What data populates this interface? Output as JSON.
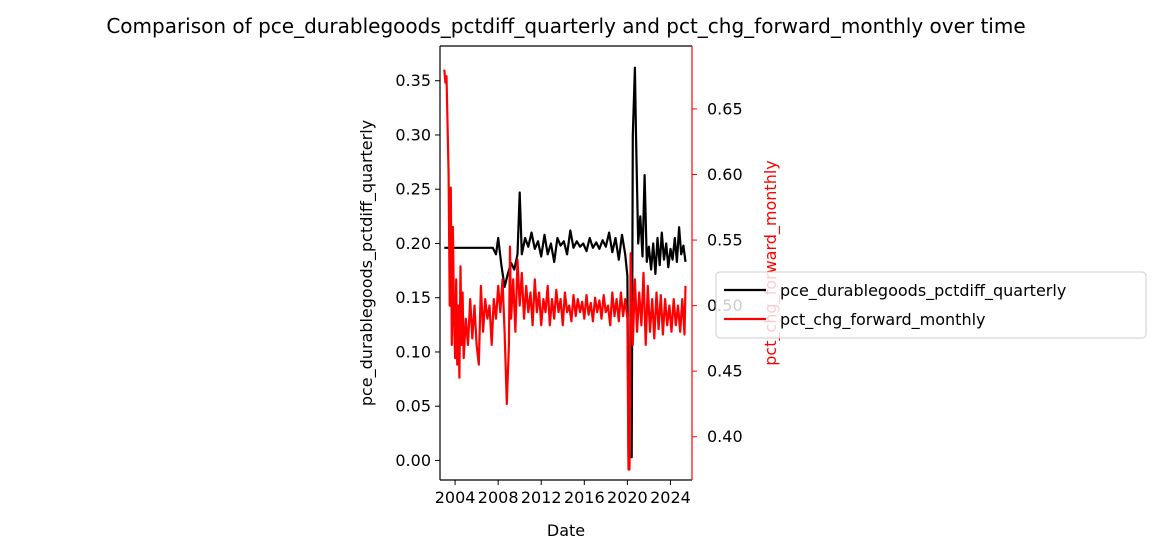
{
  "chart_data": {
    "type": "line",
    "title": "Comparison of pce_durablegoods_pctdiff_quarterly and pct_chg_forward_monthly over time",
    "xlabel": "Date",
    "ylabel_left": "pce_durablegoods_pctdiff_quarterly",
    "ylabel_right": "pct_chg_forward_monthly",
    "xlim": [
      2002.6,
      2026.0
    ],
    "x_ticks": [
      2004,
      2008,
      2012,
      2016,
      2020,
      2024
    ],
    "ylim_left": [
      -0.018,
      0.382
    ],
    "yticks_left": [
      "0.00",
      "0.05",
      "0.10",
      "0.15",
      "0.20",
      "0.25",
      "0.30",
      "0.35"
    ],
    "ylim_right": [
      0.367,
      0.698
    ],
    "yticks_right": [
      "0.40",
      "0.45",
      "0.50",
      "0.55",
      "0.60",
      "0.65"
    ],
    "grid": false,
    "legend_position": "right, outside plot",
    "colors": {
      "left_series": "#000000",
      "right_series": "#ff0000"
    },
    "series": [
      {
        "name": "pce_durablegoods_pctdiff_quarterly",
        "axis": "left",
        "color": "#000000",
        "points": [
          [
            2003.0,
            0.196
          ],
          [
            2007.5,
            0.196
          ],
          [
            2007.8,
            0.19
          ],
          [
            2008.0,
            0.205
          ],
          [
            2008.3,
            0.18
          ],
          [
            2008.6,
            0.16
          ],
          [
            2008.9,
            0.172
          ],
          [
            2009.2,
            0.182
          ],
          [
            2009.5,
            0.176
          ],
          [
            2009.8,
            0.19
          ],
          [
            2010.0,
            0.247
          ],
          [
            2010.2,
            0.19
          ],
          [
            2010.5,
            0.205
          ],
          [
            2010.8,
            0.197
          ],
          [
            2011.1,
            0.21
          ],
          [
            2011.4,
            0.195
          ],
          [
            2011.7,
            0.202
          ],
          [
            2012.0,
            0.188
          ],
          [
            2012.3,
            0.208
          ],
          [
            2012.6,
            0.19
          ],
          [
            2012.9,
            0.2
          ],
          [
            2013.2,
            0.183
          ],
          [
            2013.5,
            0.205
          ],
          [
            2013.8,
            0.198
          ],
          [
            2014.1,
            0.202
          ],
          [
            2014.4,
            0.19
          ],
          [
            2014.7,
            0.212
          ],
          [
            2015.0,
            0.196
          ],
          [
            2015.3,
            0.202
          ],
          [
            2015.6,
            0.197
          ],
          [
            2015.9,
            0.2
          ],
          [
            2016.2,
            0.193
          ],
          [
            2016.5,
            0.205
          ],
          [
            2016.8,
            0.196
          ],
          [
            2017.1,
            0.201
          ],
          [
            2017.4,
            0.195
          ],
          [
            2017.7,
            0.203
          ],
          [
            2018.0,
            0.197
          ],
          [
            2018.3,
            0.21
          ],
          [
            2018.6,
            0.192
          ],
          [
            2018.9,
            0.205
          ],
          [
            2019.2,
            0.185
          ],
          [
            2019.5,
            0.208
          ],
          [
            2019.8,
            0.19
          ],
          [
            2020.0,
            0.17
          ],
          [
            2020.1,
            0.003
          ],
          [
            2020.4,
            0.003
          ],
          [
            2020.5,
            0.3
          ],
          [
            2020.7,
            0.362
          ],
          [
            2020.8,
            0.3
          ],
          [
            2021.0,
            0.2
          ],
          [
            2021.2,
            0.225
          ],
          [
            2021.4,
            0.188
          ],
          [
            2021.6,
            0.263
          ],
          [
            2021.8,
            0.183
          ],
          [
            2022.0,
            0.197
          ],
          [
            2022.2,
            0.176
          ],
          [
            2022.4,
            0.2
          ],
          [
            2022.6,
            0.172
          ],
          [
            2022.8,
            0.205
          ],
          [
            2023.0,
            0.18
          ],
          [
            2023.2,
            0.21
          ],
          [
            2023.4,
            0.185
          ],
          [
            2023.6,
            0.2
          ],
          [
            2023.8,
            0.178
          ],
          [
            2024.0,
            0.195
          ],
          [
            2024.2,
            0.185
          ],
          [
            2024.4,
            0.205
          ],
          [
            2024.6,
            0.183
          ],
          [
            2024.8,
            0.215
          ],
          [
            2025.0,
            0.19
          ],
          [
            2025.2,
            0.198
          ],
          [
            2025.4,
            0.183
          ]
        ]
      },
      {
        "name": "pct_chg_forward_monthly",
        "axis": "right",
        "color": "#ff0000",
        "points": [
          [
            2003.0,
            0.68
          ],
          [
            2003.1,
            0.67
          ],
          [
            2003.2,
            0.675
          ],
          [
            2003.3,
            0.64
          ],
          [
            2003.4,
            0.6
          ],
          [
            2003.5,
            0.5
          ],
          [
            2003.6,
            0.59
          ],
          [
            2003.7,
            0.47
          ],
          [
            2003.8,
            0.56
          ],
          [
            2003.9,
            0.49
          ],
          [
            2004.0,
            0.46
          ],
          [
            2004.1,
            0.52
          ],
          [
            2004.2,
            0.455
          ],
          [
            2004.3,
            0.5
          ],
          [
            2004.4,
            0.445
          ],
          [
            2004.5,
            0.53
          ],
          [
            2004.6,
            0.47
          ],
          [
            2004.7,
            0.51
          ],
          [
            2004.8,
            0.46
          ],
          [
            2005.0,
            0.49
          ],
          [
            2005.2,
            0.47
          ],
          [
            2005.4,
            0.505
          ],
          [
            2005.6,
            0.475
          ],
          [
            2005.8,
            0.5
          ],
          [
            2006.0,
            0.47
          ],
          [
            2006.2,
            0.455
          ],
          [
            2006.4,
            0.515
          ],
          [
            2006.6,
            0.48
          ],
          [
            2006.8,
            0.505
          ],
          [
            2007.0,
            0.49
          ],
          [
            2007.2,
            0.5
          ],
          [
            2007.4,
            0.47
          ],
          [
            2007.6,
            0.505
          ],
          [
            2007.8,
            0.49
          ],
          [
            2008.0,
            0.515
          ],
          [
            2008.2,
            0.495
          ],
          [
            2008.4,
            0.52
          ],
          [
            2008.6,
            0.48
          ],
          [
            2008.8,
            0.425
          ],
          [
            2009.0,
            0.47
          ],
          [
            2009.1,
            0.545
          ],
          [
            2009.2,
            0.49
          ],
          [
            2009.4,
            0.52
          ],
          [
            2009.6,
            0.48
          ],
          [
            2009.8,
            0.535
          ],
          [
            2010.0,
            0.5
          ],
          [
            2010.2,
            0.525
          ],
          [
            2010.4,
            0.49
          ],
          [
            2010.6,
            0.515
          ],
          [
            2010.8,
            0.495
          ],
          [
            2011.0,
            0.51
          ],
          [
            2011.2,
            0.485
          ],
          [
            2011.4,
            0.52
          ],
          [
            2011.6,
            0.495
          ],
          [
            2011.8,
            0.51
          ],
          [
            2012.0,
            0.485
          ],
          [
            2012.2,
            0.505
          ],
          [
            2012.4,
            0.495
          ],
          [
            2012.6,
            0.515
          ],
          [
            2012.8,
            0.485
          ],
          [
            2013.0,
            0.505
          ],
          [
            2013.2,
            0.49
          ],
          [
            2013.4,
            0.512
          ],
          [
            2013.6,
            0.495
          ],
          [
            2013.8,
            0.505
          ],
          [
            2014.0,
            0.485
          ],
          [
            2014.2,
            0.51
          ],
          [
            2014.4,
            0.495
          ],
          [
            2014.6,
            0.5
          ],
          [
            2014.8,
            0.488
          ],
          [
            2015.0,
            0.508
          ],
          [
            2015.2,
            0.492
          ],
          [
            2015.4,
            0.505
          ],
          [
            2015.6,
            0.495
          ],
          [
            2015.8,
            0.503
          ],
          [
            2016.0,
            0.49
          ],
          [
            2016.2,
            0.508
          ],
          [
            2016.4,
            0.493
          ],
          [
            2016.6,
            0.502
          ],
          [
            2016.8,
            0.488
          ],
          [
            2017.0,
            0.506
          ],
          [
            2017.2,
            0.495
          ],
          [
            2017.4,
            0.504
          ],
          [
            2017.6,
            0.49
          ],
          [
            2017.8,
            0.508
          ],
          [
            2018.0,
            0.495
          ],
          [
            2018.2,
            0.5
          ],
          [
            2018.4,
            0.485
          ],
          [
            2018.6,
            0.51
          ],
          [
            2018.8,
            0.492
          ],
          [
            2019.0,
            0.505
          ],
          [
            2019.2,
            0.488
          ],
          [
            2019.4,
            0.51
          ],
          [
            2019.6,
            0.492
          ],
          [
            2019.8,
            0.505
          ],
          [
            2020.0,
            0.49
          ],
          [
            2020.1,
            0.375
          ],
          [
            2020.2,
            0.375
          ],
          [
            2020.3,
            0.54
          ],
          [
            2020.5,
            0.47
          ],
          [
            2020.7,
            0.52
          ],
          [
            2020.9,
            0.48
          ],
          [
            2021.1,
            0.51
          ],
          [
            2021.3,
            0.485
          ],
          [
            2021.5,
            0.525
          ],
          [
            2021.7,
            0.47
          ],
          [
            2021.9,
            0.515
          ],
          [
            2022.1,
            0.48
          ],
          [
            2022.3,
            0.505
          ],
          [
            2022.5,
            0.475
          ],
          [
            2022.7,
            0.51
          ],
          [
            2022.9,
            0.482
          ],
          [
            2023.1,
            0.508
          ],
          [
            2023.3,
            0.478
          ],
          [
            2023.5,
            0.505
          ],
          [
            2023.7,
            0.485
          ],
          [
            2023.9,
            0.5
          ],
          [
            2024.1,
            0.48
          ],
          [
            2024.3,
            0.505
          ],
          [
            2024.5,
            0.485
          ],
          [
            2024.7,
            0.5
          ],
          [
            2024.9,
            0.48
          ],
          [
            2025.1,
            0.505
          ],
          [
            2025.3,
            0.478
          ],
          [
            2025.4,
            0.515
          ]
        ]
      }
    ]
  }
}
